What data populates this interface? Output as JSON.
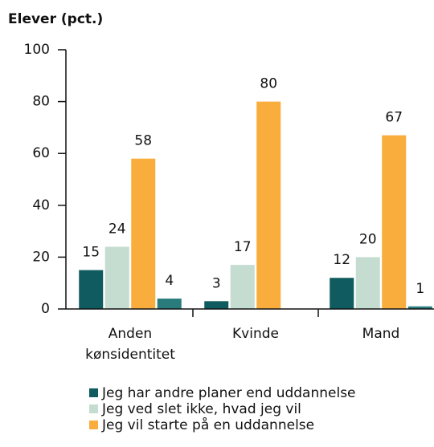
{
  "chart_data": {
    "type": "bar",
    "title": "Elever (pct.)",
    "categories": [
      "Anden kønsidentitet",
      "Kvinde",
      "Mand"
    ],
    "series": [
      {
        "name": "Jeg har andre planer end uddannelse",
        "color": "#0f5b5f",
        "values": [
          15,
          3,
          12
        ]
      },
      {
        "name": "Jeg ved slet ikke, hvad jeg vil",
        "color": "#c5dcd1",
        "values": [
          24,
          17,
          20
        ]
      },
      {
        "name": "Jeg vil starte på en uddannelse",
        "color": "#f9ad3c",
        "values": [
          58,
          80,
          67
        ]
      },
      {
        "color": "#2a7b7c",
        "values": [
          4,
          0,
          1
        ],
        "value_labels": [
          "4",
          null,
          "1"
        ]
      }
    ],
    "ylim": [
      0,
      100
    ],
    "yticks": [
      0,
      20,
      40,
      60,
      80,
      100
    ],
    "grid": false
  }
}
